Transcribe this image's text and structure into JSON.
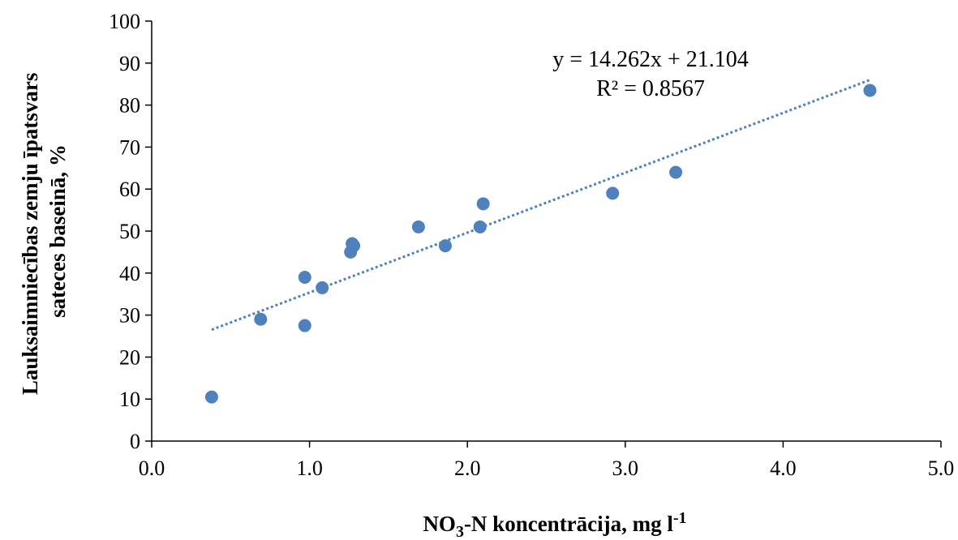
{
  "chart_data": {
    "type": "scatter",
    "xlabel": {
      "base": "NO",
      "sub": "3",
      "mid": "-N koncentrācija, mg l",
      "sup": "-1"
    },
    "ylabel": [
      "Lauksaimniecības zemju īpatsvars",
      "sateces baseinā, %"
    ],
    "xlim": [
      0,
      5
    ],
    "ylim": [
      0,
      100
    ],
    "xticks": [
      "0.0",
      "1.0",
      "2.0",
      "3.0",
      "4.0",
      "5.0"
    ],
    "yticks": [
      "0",
      "10",
      "20",
      "30",
      "40",
      "50",
      "60",
      "70",
      "80",
      "90",
      "100"
    ],
    "grid": false,
    "legend": "none",
    "point_color": "#4f81bd",
    "trendline_color": "#4f81bd",
    "series": [
      {
        "x": [
          0.38,
          0.69,
          0.97,
          0.97,
          1.08,
          1.26,
          1.27,
          1.28,
          1.69,
          1.86,
          2.08,
          2.1,
          2.92,
          3.32,
          4.55
        ],
        "y": [
          10.5,
          29,
          27.5,
          39,
          36.5,
          45,
          47,
          46.5,
          51,
          46.5,
          51,
          56.5,
          59,
          64,
          83.5
        ]
      }
    ],
    "trendline": {
      "type": "linear",
      "slope": 14.262,
      "intercept": 21.104,
      "x_range": [
        0.38,
        4.55
      ],
      "equation_text": "y = 14.262x + 21.104",
      "r2_text": "R² = 0.8567"
    }
  }
}
